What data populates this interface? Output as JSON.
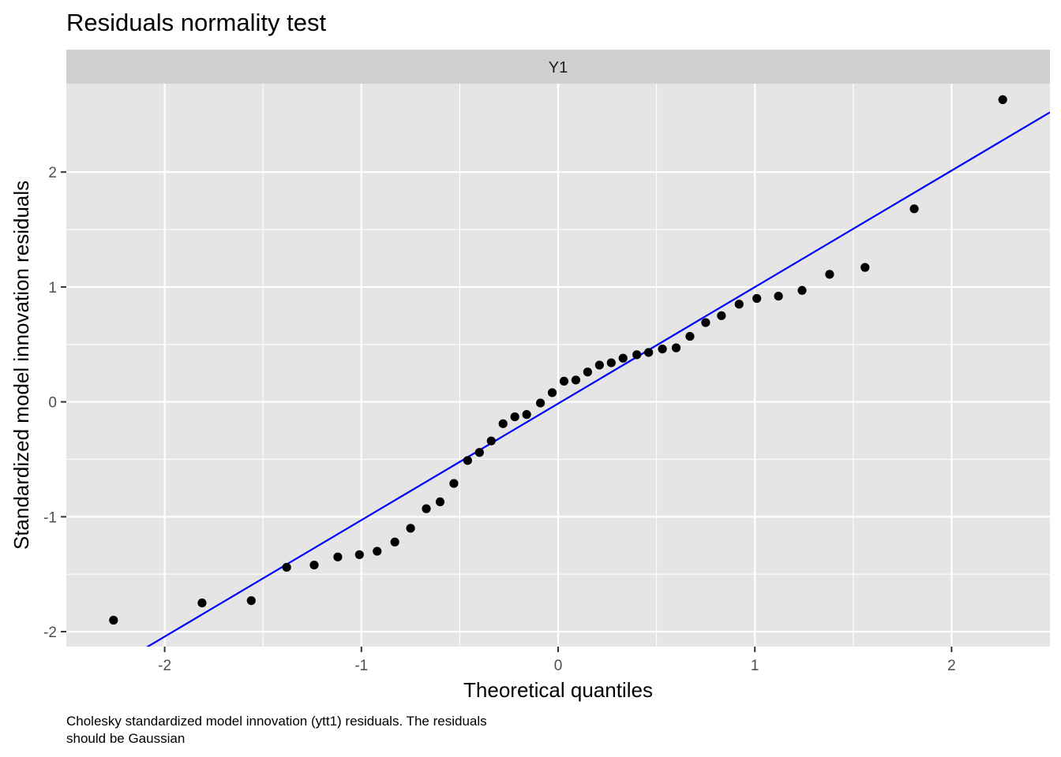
{
  "chart_data": {
    "type": "scatter",
    "title": "Residuals normality test",
    "facet_label": "Y1",
    "xlabel": "Theoretical quantiles",
    "ylabel": "Standardized model innovation residuals",
    "caption_lines": [
      "Cholesky standardized model innovation (ytt1) residuals. The residuals",
      "should be Gaussian"
    ],
    "xlim": [
      -2.5,
      2.5
    ],
    "ylim": [
      -2.13,
      2.77
    ],
    "x_ticks": [
      -2,
      -1,
      0,
      1,
      2
    ],
    "x_tick_labels": [
      "-2",
      "-1",
      "0",
      "1",
      "2"
    ],
    "y_ticks": [
      -2,
      -1,
      0,
      1,
      2
    ],
    "y_tick_labels": [
      "-2",
      "-1",
      "0",
      "1",
      "2"
    ],
    "grid": true,
    "colors": {
      "panel": "#e5e5e5",
      "strip": "#d0d0d0",
      "grid": "#ffffff",
      "points": "#000000",
      "reference_line": "#0000ff"
    },
    "points": [
      {
        "x": -2.26,
        "y": -1.9
      },
      {
        "x": -1.81,
        "y": -1.75
      },
      {
        "x": -1.56,
        "y": -1.73
      },
      {
        "x": -1.38,
        "y": -1.44
      },
      {
        "x": -1.24,
        "y": -1.42
      },
      {
        "x": -1.12,
        "y": -1.35
      },
      {
        "x": -1.01,
        "y": -1.33
      },
      {
        "x": -0.92,
        "y": -1.3
      },
      {
        "x": -0.83,
        "y": -1.22
      },
      {
        "x": -0.75,
        "y": -1.1
      },
      {
        "x": -0.67,
        "y": -0.93
      },
      {
        "x": -0.6,
        "y": -0.87
      },
      {
        "x": -0.53,
        "y": -0.71
      },
      {
        "x": -0.46,
        "y": -0.51
      },
      {
        "x": -0.4,
        "y": -0.44
      },
      {
        "x": -0.34,
        "y": -0.34
      },
      {
        "x": -0.28,
        "y": -0.19
      },
      {
        "x": -0.22,
        "y": -0.13
      },
      {
        "x": -0.16,
        "y": -0.11
      },
      {
        "x": -0.09,
        "y": -0.01
      },
      {
        "x": -0.03,
        "y": 0.08
      },
      {
        "x": 0.03,
        "y": 0.18
      },
      {
        "x": 0.09,
        "y": 0.19
      },
      {
        "x": 0.15,
        "y": 0.26
      },
      {
        "x": 0.21,
        "y": 0.32
      },
      {
        "x": 0.27,
        "y": 0.34
      },
      {
        "x": 0.33,
        "y": 0.38
      },
      {
        "x": 0.4,
        "y": 0.41
      },
      {
        "x": 0.46,
        "y": 0.43
      },
      {
        "x": 0.53,
        "y": 0.46
      },
      {
        "x": 0.6,
        "y": 0.47
      },
      {
        "x": 0.67,
        "y": 0.57
      },
      {
        "x": 0.75,
        "y": 0.69
      },
      {
        "x": 0.83,
        "y": 0.75
      },
      {
        "x": 0.92,
        "y": 0.85
      },
      {
        "x": 1.01,
        "y": 0.9
      },
      {
        "x": 1.12,
        "y": 0.92
      },
      {
        "x": 1.24,
        "y": 0.97
      },
      {
        "x": 1.38,
        "y": 1.11
      },
      {
        "x": 1.56,
        "y": 1.17
      },
      {
        "x": 1.81,
        "y": 1.68
      },
      {
        "x": 2.26,
        "y": 2.63
      }
    ],
    "reference_line": {
      "x": [
        -2.5,
        2.5
      ],
      "y": [
        -2.55,
        2.52
      ]
    }
  }
}
